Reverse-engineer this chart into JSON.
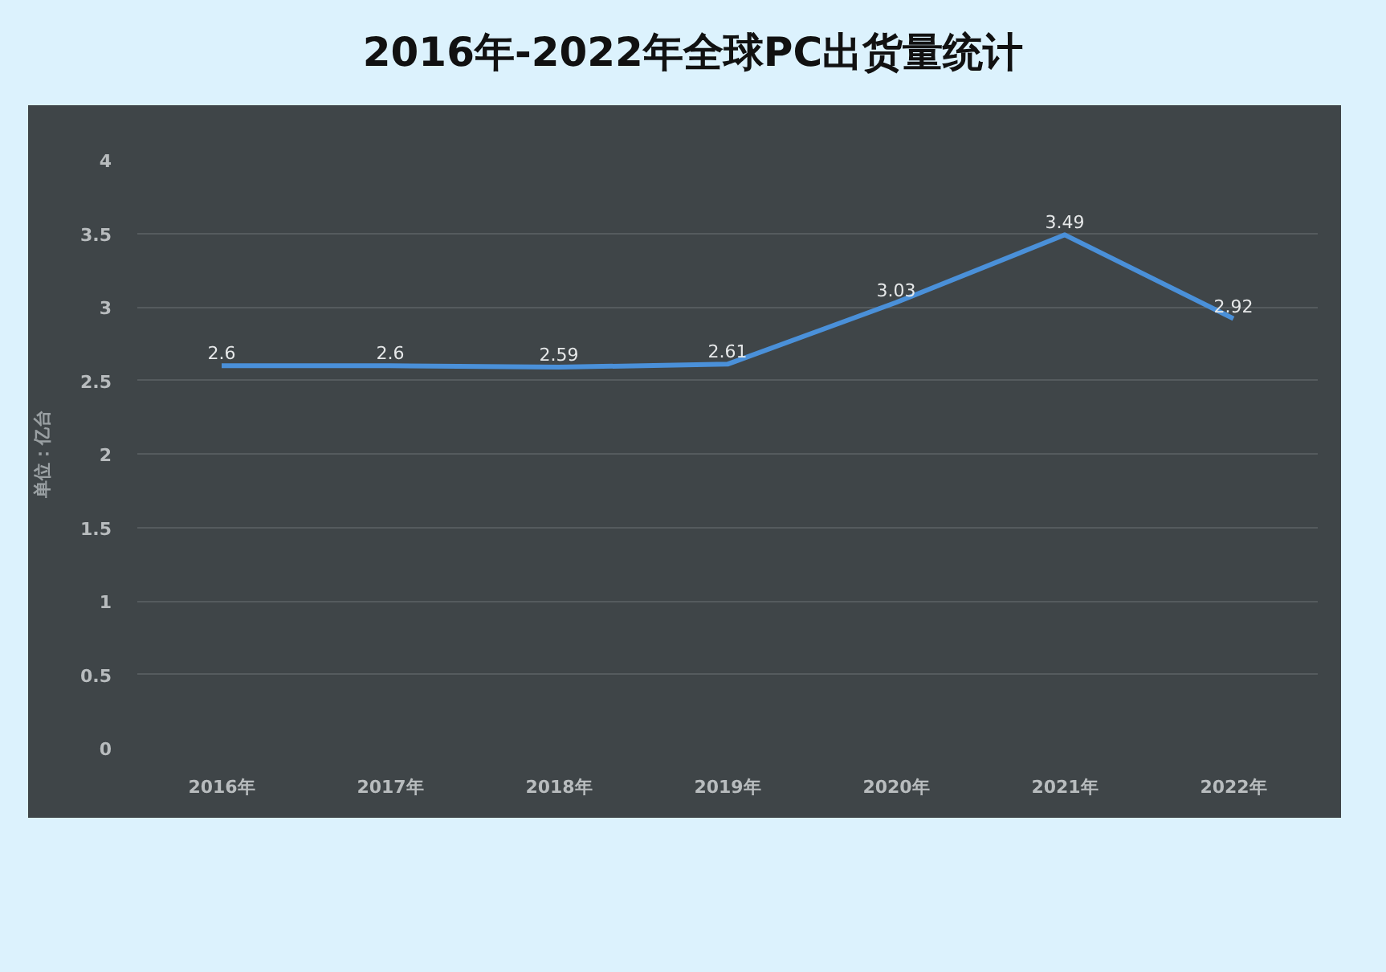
{
  "chart_data": {
    "type": "line",
    "title": "2016年-2022年全球PC出货量统计",
    "ylabel": "单位：亿台",
    "categories": [
      "2016年",
      "2017年",
      "2018年",
      "2019年",
      "2020年",
      "2021年",
      "2022年"
    ],
    "series": [
      {
        "color": "#4a90d9",
        "values": [
          2.6,
          2.6,
          2.59,
          2.61,
          3.03,
          3.49,
          2.92
        ]
      }
    ],
    "ylim": [
      0,
      4
    ],
    "yticks": [
      0,
      0.5,
      1,
      1.5,
      2,
      2.5,
      3,
      3.5,
      4
    ],
    "grid": "y",
    "data_labels": true,
    "marker": "none",
    "line_style": "solid"
  }
}
